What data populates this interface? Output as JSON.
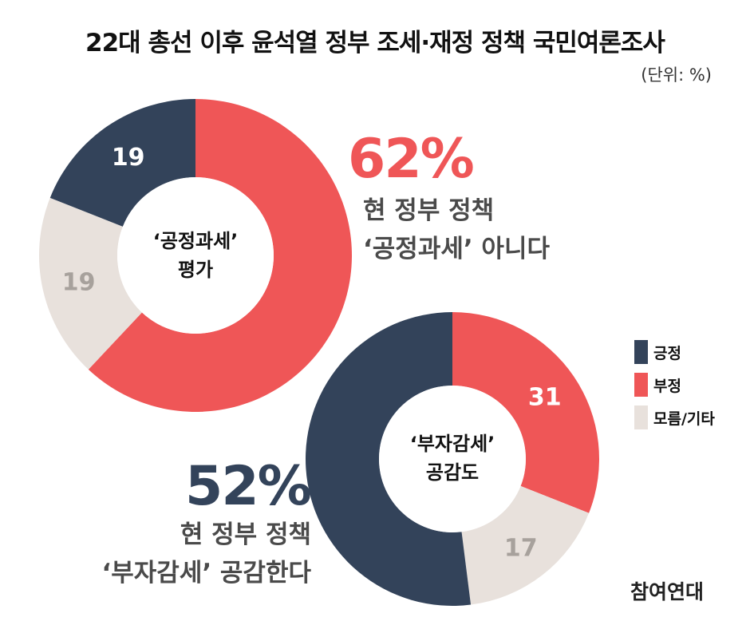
{
  "title": "22대 총선 이후 윤석열 정부 조세·재정 정책 국민여론조사",
  "unit_label": "(단위: %)",
  "colors": {
    "positive": "#33435a",
    "negative": "#ef5657",
    "other": "#e8e1dc"
  },
  "chart_data": [
    {
      "type": "pie",
      "center_label": [
        "‘공정과세’",
        "평가"
      ],
      "slices": [
        {
          "category": "긍정",
          "value": 19,
          "label": "19"
        },
        {
          "category": "부정",
          "value": 62,
          "label": ""
        },
        {
          "category": "모름/기타",
          "value": 19,
          "label": "19"
        }
      ],
      "headline": {
        "value": "62%",
        "lines": [
          "현 정부 정책",
          "‘공정과세’ 아니다"
        ]
      }
    },
    {
      "type": "pie",
      "center_label": [
        "‘부자감세’",
        "공감도"
      ],
      "slices": [
        {
          "category": "긍정",
          "value": 52,
          "label": ""
        },
        {
          "category": "부정",
          "value": 31,
          "label": "31"
        },
        {
          "category": "모름/기타",
          "value": 17,
          "label": "17"
        }
      ],
      "headline": {
        "value": "52%",
        "lines": [
          "현 정부 정책",
          "‘부자감세’ 공감한다"
        ]
      }
    }
  ],
  "legend": [
    {
      "label": "긍정",
      "color": "#33435a"
    },
    {
      "label": "부정",
      "color": "#ef5657"
    },
    {
      "label": "모름/기타",
      "color": "#e8e1dc"
    }
  ],
  "source": "참여연대"
}
